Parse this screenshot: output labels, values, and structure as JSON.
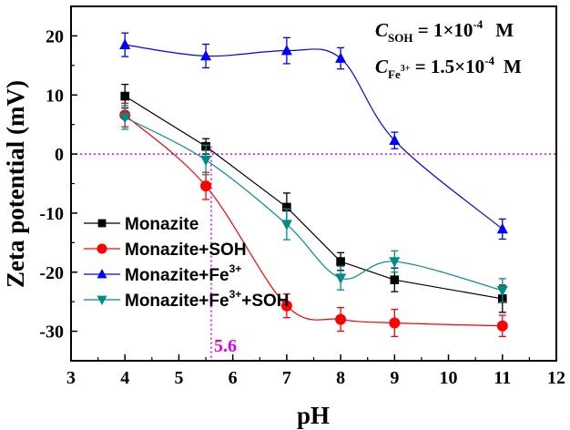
{
  "chart_data": {
    "type": "line",
    "xlabel": "pH",
    "ylabel": "Zeta potential (mV)",
    "xlim": [
      3,
      12
    ],
    "ylim": [
      -35,
      25
    ],
    "xticks": [
      3,
      4,
      5,
      6,
      7,
      8,
      9,
      10,
      11,
      12
    ],
    "yticks": [
      20,
      10,
      0,
      -10,
      -20,
      -30
    ],
    "xtick_labels": [
      "3",
      "4",
      "5",
      "6",
      "7",
      "8",
      "9",
      "10",
      "11",
      "12"
    ],
    "ytick_labels": [
      "20",
      "10",
      "0",
      "-10",
      "-20",
      "-30"
    ],
    "reference_line": {
      "y": 0,
      "color": "#e000e0"
    },
    "reference_vline": {
      "x": 5.6,
      "label": "5.6",
      "color": "#e000e0"
    },
    "annotations": {
      "line1": {
        "var": "C",
        "sub": "SOH",
        "text": " = 1×10",
        "sup": "-4",
        "unit": "M"
      },
      "line2": {
        "var": "C",
        "sub": "Fe",
        "sub_sup": "3+",
        "text": " = 1.5×10",
        "sup": "-4",
        "unit": "M"
      }
    },
    "legend_position": "bottom-left",
    "series": [
      {
        "name": "Monazite",
        "legend_base": "Monazite",
        "legend_sup": "",
        "legend_tail": "",
        "color": "#000000",
        "marker": "square",
        "x": [
          4,
          5.5,
          7,
          8,
          9,
          11
        ],
        "values": [
          9.8,
          1.3,
          -9.0,
          -18.2,
          -21.3,
          -24.5
        ],
        "errors": [
          2.0,
          1.3,
          2.4,
          1.5,
          2.0,
          2.3
        ]
      },
      {
        "name": "Monazite+SOH",
        "legend_base": "Monazite+SOH",
        "legend_sup": "",
        "legend_tail": "",
        "color": "#ff0000",
        "marker": "circle",
        "x": [
          4,
          5.5,
          7,
          8,
          9,
          11
        ],
        "values": [
          6.6,
          -5.4,
          -25.7,
          -28.0,
          -28.6,
          -29.1
        ],
        "errors": [
          2.0,
          2.3,
          2.0,
          2.0,
          2.3,
          1.8
        ]
      },
      {
        "name": "Monazite+Fe3+",
        "legend_base": "Monazite+Fe",
        "legend_sup": "3+",
        "legend_tail": "",
        "color": "#0000ff",
        "marker": "triangle-up",
        "x": [
          4,
          5.5,
          7,
          8,
          9,
          11
        ],
        "values": [
          18.5,
          16.6,
          17.5,
          16.2,
          2.3,
          -12.7
        ],
        "errors": [
          2.0,
          2.0,
          2.2,
          1.8,
          1.4,
          1.7
        ]
      },
      {
        "name": "Monazite+Fe3+ +SOH",
        "legend_base": "Monazite+Fe",
        "legend_sup": "3+",
        "legend_tail": "+SOH",
        "color": "#008b8b",
        "marker": "triangle-down",
        "x": [
          4,
          5.5,
          7,
          8,
          9,
          11
        ],
        "values": [
          6.2,
          -1.0,
          -11.9,
          -21.0,
          -18.2,
          -23.1
        ],
        "errors": [
          2.0,
          2.5,
          2.6,
          2.0,
          1.8,
          2.0
        ]
      }
    ]
  }
}
